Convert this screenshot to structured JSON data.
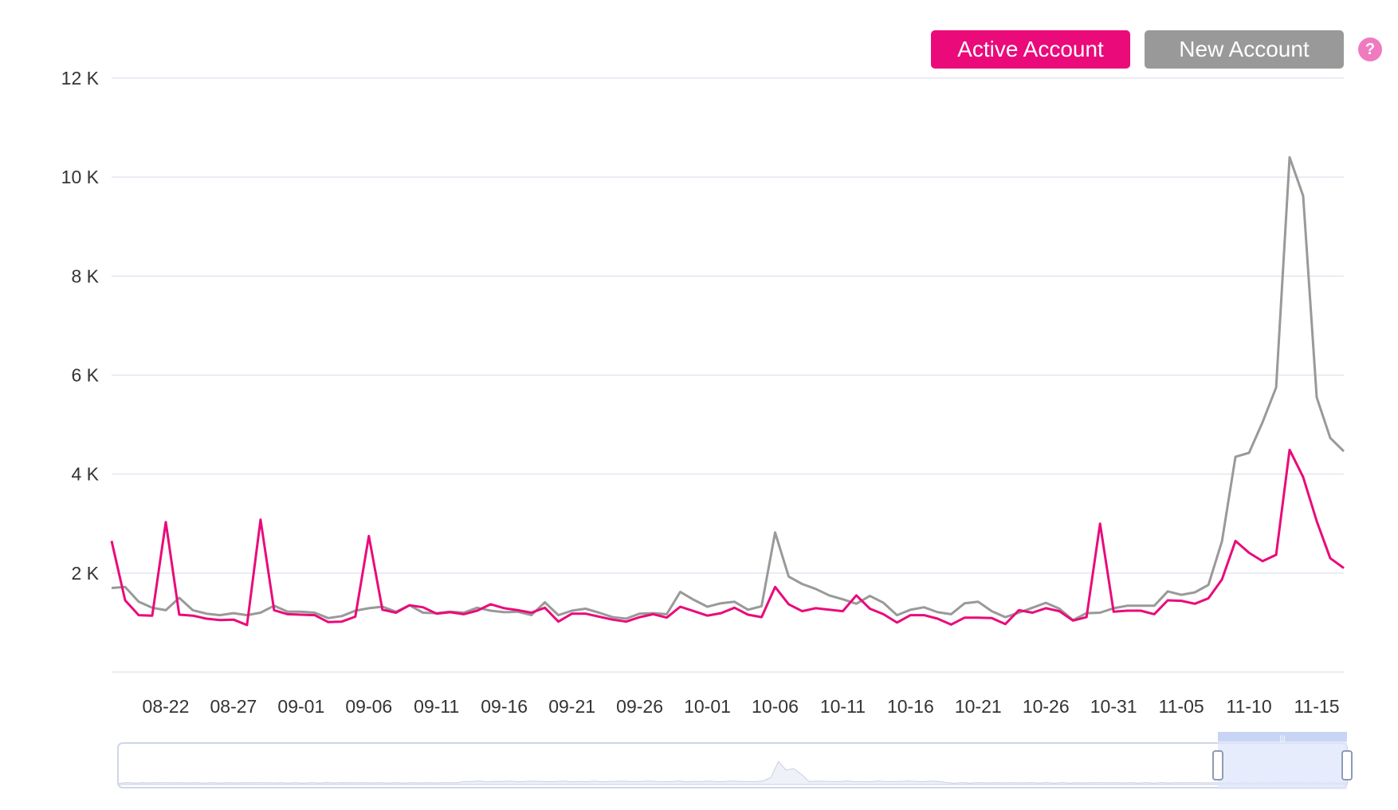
{
  "legend": {
    "active_label": "Active Account",
    "new_label": "New Account",
    "help_symbol": "?"
  },
  "chart_data": {
    "type": "line",
    "ylim": [
      0,
      12000
    ],
    "y_ticks": [
      2000,
      4000,
      6000,
      8000,
      10000,
      12000
    ],
    "y_tick_labels": [
      "2 K",
      "4 K",
      "6 K",
      "8 K",
      "10 K",
      "12 K"
    ],
    "x_start_date": "08-18",
    "x_tick_labels": [
      "08-22",
      "08-27",
      "09-01",
      "09-06",
      "09-11",
      "09-16",
      "09-21",
      "09-26",
      "10-01",
      "10-06",
      "10-11",
      "10-16",
      "10-21",
      "10-26",
      "10-31",
      "11-05",
      "11-10",
      "11-15"
    ],
    "x_tick_offsets": [
      4,
      9,
      14,
      19,
      24,
      29,
      34,
      39,
      44,
      49,
      54,
      59,
      64,
      69,
      74,
      79,
      84,
      89
    ],
    "grid": true,
    "legend_position": "top-right",
    "series": [
      {
        "name": "Active Account",
        "color": "#ea0a7a",
        "values": [
          2650,
          1450,
          1150,
          1140,
          3030,
          1160,
          1140,
          1080,
          1050,
          1060,
          950,
          3080,
          1250,
          1170,
          1160,
          1150,
          1010,
          1020,
          1120,
          2750,
          1260,
          1200,
          1350,
          1310,
          1180,
          1210,
          1170,
          1240,
          1370,
          1290,
          1250,
          1200,
          1300,
          1020,
          1180,
          1180,
          1120,
          1060,
          1020,
          1110,
          1170,
          1100,
          1320,
          1230,
          1140,
          1190,
          1300,
          1160,
          1110,
          1720,
          1370,
          1230,
          1290,
          1260,
          1230,
          1550,
          1280,
          1170,
          1000,
          1150,
          1150,
          1080,
          960,
          1100,
          1100,
          1090,
          970,
          1250,
          1200,
          1290,
          1230,
          1040,
          1110,
          3000,
          1220,
          1240,
          1240,
          1170,
          1450,
          1440,
          1380,
          1490,
          1870,
          2650,
          2410,
          2240,
          2370,
          4490,
          3940,
          3050,
          2300,
          2100
        ]
      },
      {
        "name": "New Account",
        "color": "#999999",
        "values": [
          1700,
          1720,
          1420,
          1300,
          1250,
          1500,
          1250,
          1180,
          1150,
          1190,
          1150,
          1200,
          1340,
          1220,
          1220,
          1200,
          1090,
          1130,
          1240,
          1290,
          1320,
          1220,
          1350,
          1200,
          1190,
          1220,
          1200,
          1300,
          1240,
          1210,
          1220,
          1150,
          1410,
          1150,
          1240,
          1280,
          1200,
          1110,
          1080,
          1180,
          1190,
          1170,
          1620,
          1460,
          1320,
          1390,
          1420,
          1260,
          1330,
          2820,
          1930,
          1780,
          1680,
          1550,
          1470,
          1380,
          1540,
          1400,
          1150,
          1260,
          1310,
          1210,
          1170,
          1390,
          1420,
          1230,
          1110,
          1200,
          1300,
          1400,
          1280,
          1050,
          1190,
          1200,
          1290,
          1340,
          1340,
          1340,
          1630,
          1560,
          1610,
          1760,
          2640,
          4350,
          4430,
          5050,
          5750,
          10400,
          9620,
          5550,
          4730,
          4460
        ]
      }
    ]
  },
  "minimap": {
    "handle_grip": "|||"
  }
}
